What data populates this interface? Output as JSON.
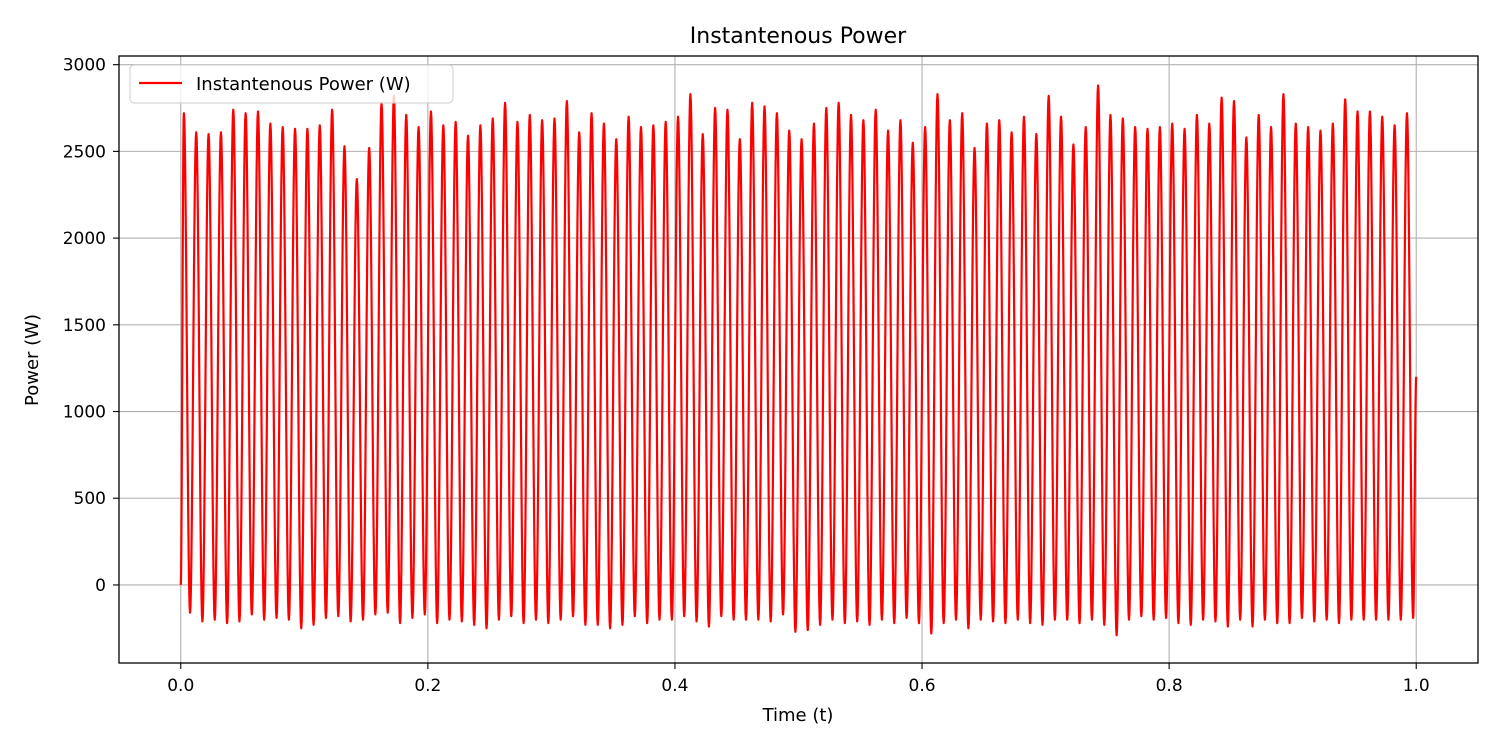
{
  "chart_data": {
    "type": "line",
    "title": "Instantenous Power",
    "xlabel": "Time (t)",
    "ylabel": "Power (W)",
    "xlim": [
      -0.05,
      1.05
    ],
    "ylim": [
      -450,
      3050
    ],
    "xticks": [
      0.0,
      0.2,
      0.4,
      0.6,
      0.8,
      1.0
    ],
    "xtick_labels": [
      "0.0",
      "0.2",
      "0.4",
      "0.6",
      "0.8",
      "1.0"
    ],
    "yticks": [
      0,
      500,
      1000,
      1500,
      2000,
      2500,
      3000
    ],
    "ytick_labels": [
      "0",
      "500",
      "1000",
      "1500",
      "2000",
      "2500",
      "3000"
    ],
    "grid": true,
    "legend_position": "top-left",
    "series": [
      {
        "name": "Instantenous Power (W)",
        "color": "#ff0000",
        "frequency_hz": 100,
        "mean_value": 1200,
        "peak_values": [
          2720,
          2610,
          2600,
          2610,
          2740,
          2720,
          2730,
          2660,
          2640,
          2630,
          2630,
          2650,
          2740,
          2530,
          2340,
          2520,
          2780,
          2820,
          2710,
          2640,
          2730,
          2650,
          2670,
          2590,
          2650,
          2690,
          2780,
          2670,
          2710,
          2680,
          2690,
          2790,
          2610,
          2720,
          2660,
          2570,
          2700,
          2640,
          2650,
          2670,
          2700,
          2830,
          2600,
          2750,
          2740,
          2570,
          2780,
          2760,
          2720,
          2620,
          2570,
          2660,
          2750,
          2780,
          2710,
          2680,
          2740,
          2620,
          2680,
          2550,
          2640,
          2830,
          2680,
          2720,
          2520,
          2660,
          2680,
          2610,
          2700,
          2600,
          2820,
          2700,
          2540,
          2640,
          2880,
          2710,
          2690,
          2640,
          2630,
          2640,
          2660,
          2630,
          2710,
          2660,
          2810,
          2790,
          2580,
          2710,
          2640,
          2830,
          2660,
          2640,
          2620,
          2660,
          2800,
          2730,
          2730,
          2700,
          2650,
          2720
        ],
        "trough_values": [
          -160,
          -210,
          -200,
          -220,
          -210,
          -170,
          -200,
          -190,
          -200,
          -250,
          -230,
          -190,
          -180,
          -210,
          -200,
          -170,
          -160,
          -220,
          -190,
          -170,
          -220,
          -200,
          -210,
          -230,
          -250,
          -200,
          -180,
          -220,
          -200,
          -220,
          -200,
          -180,
          -230,
          -230,
          -250,
          -230,
          -180,
          -220,
          -200,
          -200,
          -180,
          -210,
          -240,
          -180,
          -200,
          -200,
          -200,
          -210,
          -170,
          -270,
          -260,
          -230,
          -200,
          -220,
          -210,
          -230,
          -200,
          -220,
          -190,
          -220,
          -280,
          -220,
          -200,
          -250,
          -200,
          -210,
          -220,
          -200,
          -220,
          -230,
          -200,
          -200,
          -220,
          -200,
          -230,
          -290,
          -200,
          -180,
          -200,
          -190,
          -220,
          -230,
          -200,
          -210,
          -240,
          -200,
          -240,
          -200,
          -220,
          -220,
          -190,
          -210,
          -200,
          -220,
          -200,
          -200,
          -200,
          -200,
          -200,
          -190
        ]
      }
    ]
  }
}
